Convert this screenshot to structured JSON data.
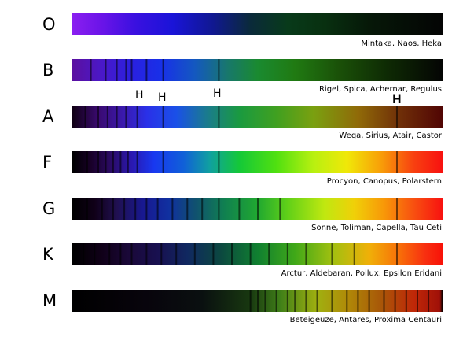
{
  "hydrogen_label": "H",
  "classes": [
    {
      "letter": "O",
      "stars": "Mintaka, Naos, Heka",
      "gradient": [
        [
          "#8a1ef0",
          0
        ],
        [
          "#6a14e8",
          0.08
        ],
        [
          "#3a10e0",
          0.17
        ],
        [
          "#1a14d8",
          0.27
        ],
        [
          "#101890",
          0.38
        ],
        [
          "#0a2a3a",
          0.48
        ],
        [
          "#083a1a",
          0.58
        ],
        [
          "#083010",
          0.68
        ],
        [
          "#061808",
          0.8
        ],
        [
          "#040404",
          1
        ]
      ],
      "lines": []
    },
    {
      "letter": "B",
      "stars": "Rigel, Spica, Achernar, Regulus",
      "gradient": [
        [
          "#5a10a0",
          0
        ],
        [
          "#4a18c8",
          0.08
        ],
        [
          "#2a20e0",
          0.16
        ],
        [
          "#1830e8",
          0.24
        ],
        [
          "#1458c0",
          0.33
        ],
        [
          "#18786a",
          0.42
        ],
        [
          "#1a8a30",
          0.5
        ],
        [
          "#207a12",
          0.6
        ],
        [
          "#1a5008",
          0.72
        ],
        [
          "#0e2a04",
          0.85
        ],
        [
          "#040404",
          1
        ]
      ],
      "lines": [
        0.05,
        0.09,
        0.12,
        0.145,
        0.16,
        0.2,
        0.245,
        0.395
      ]
    },
    {
      "letter": "A",
      "stars": "Wega, Sirius, Atair, Castor",
      "gradient": [
        [
          "#100014",
          0
        ],
        [
          "#3a0a70",
          0.07
        ],
        [
          "#3a1ab0",
          0.14
        ],
        [
          "#2a30e8",
          0.2
        ],
        [
          "#1a50e8",
          0.28
        ],
        [
          "#1a7a90",
          0.36
        ],
        [
          "#1a9a40",
          0.45
        ],
        [
          "#40a020",
          0.55
        ],
        [
          "#7aa010",
          0.65
        ],
        [
          "#906a08",
          0.77
        ],
        [
          "#703008",
          0.88
        ],
        [
          "#500404",
          1
        ]
      ],
      "lines": [
        0.035,
        0.07,
        0.095,
        0.12,
        0.145,
        0.175,
        0.245,
        0.395,
        0.875
      ]
    },
    {
      "letter": "F",
      "stars": "Procyon, Canopus, Polarstern",
      "gradient": [
        [
          "#000000",
          0
        ],
        [
          "#180028",
          0.05
        ],
        [
          "#2a0a60",
          0.1
        ],
        [
          "#2a18b0",
          0.16
        ],
        [
          "#1838f0",
          0.22
        ],
        [
          "#1060d8",
          0.3
        ],
        [
          "#10a0a0",
          0.37
        ],
        [
          "#14c838",
          0.45
        ],
        [
          "#50e010",
          0.55
        ],
        [
          "#b8f010",
          0.65
        ],
        [
          "#f0e808",
          0.74
        ],
        [
          "#f8a008",
          0.83
        ],
        [
          "#f84010",
          0.92
        ],
        [
          "#f81010",
          1
        ]
      ],
      "lines": [
        0.04,
        0.07,
        0.09,
        0.11,
        0.13,
        0.15,
        0.175,
        0.245,
        0.395,
        0.875
      ]
    },
    {
      "letter": "G",
      "stars": "Sonne, Toliman, Capella, Tau Ceti",
      "gradient": [
        [
          "#000000",
          0
        ],
        [
          "#100018",
          0.06
        ],
        [
          "#201050",
          0.12
        ],
        [
          "#181890",
          0.19
        ],
        [
          "#1030a0",
          0.26
        ],
        [
          "#105070",
          0.33
        ],
        [
          "#108050",
          0.41
        ],
        [
          "#20a830",
          0.5
        ],
        [
          "#60d018",
          0.58
        ],
        [
          "#c0e810",
          0.68
        ],
        [
          "#f0d008",
          0.76
        ],
        [
          "#f89808",
          0.84
        ],
        [
          "#f85010",
          0.92
        ],
        [
          "#f81010",
          1
        ]
      ],
      "lines": [
        0.04,
        0.08,
        0.11,
        0.14,
        0.17,
        0.2,
        0.23,
        0.27,
        0.31,
        0.35,
        0.395,
        0.45,
        0.5,
        0.56,
        0.875
      ]
    },
    {
      "letter": "K",
      "stars": "Arctur, Aldebaran, Pollux, Epsilon Eridani",
      "gradient": [
        [
          "#000000",
          0
        ],
        [
          "#100018",
          0.08
        ],
        [
          "#1a0838",
          0.15
        ],
        [
          "#181050",
          0.23
        ],
        [
          "#102860",
          0.31
        ],
        [
          "#0c4840",
          0.4
        ],
        [
          "#108030",
          0.5
        ],
        [
          "#40a818",
          0.6
        ],
        [
          "#a0c010",
          0.7
        ],
        [
          "#f0b008",
          0.8
        ],
        [
          "#f87008",
          0.88
        ],
        [
          "#f83010",
          0.95
        ],
        [
          "#f81008",
          1
        ]
      ],
      "lines": [
        0.03,
        0.06,
        0.1,
        0.13,
        0.16,
        0.2,
        0.24,
        0.28,
        0.33,
        0.38,
        0.43,
        0.48,
        0.53,
        0.58,
        0.63,
        0.7,
        0.76,
        0.875
      ]
    },
    {
      "letter": "M",
      "stars": "Beteigeuze, Antares, Proxima Centauri",
      "gradient": [
        [
          "#000000",
          0
        ],
        [
          "#08040c",
          0.2
        ],
        [
          "#0a1010",
          0.35
        ],
        [
          "#183810",
          0.48
        ],
        [
          "#408018",
          0.56
        ],
        [
          "#a0b010",
          0.66
        ],
        [
          "#b08a08",
          0.74
        ],
        [
          "#a85808",
          0.83
        ],
        [
          "#c02808",
          0.92
        ],
        [
          "#a01008",
          0.99
        ],
        [
          "#000000",
          1
        ]
      ],
      "lines": [
        0.48,
        0.5,
        0.52,
        0.55,
        0.58,
        0.6,
        0.63,
        0.66,
        0.7,
        0.74,
        0.77,
        0.8,
        0.84,
        0.87,
        0.9,
        0.93,
        0.96,
        0.997
      ]
    }
  ]
}
